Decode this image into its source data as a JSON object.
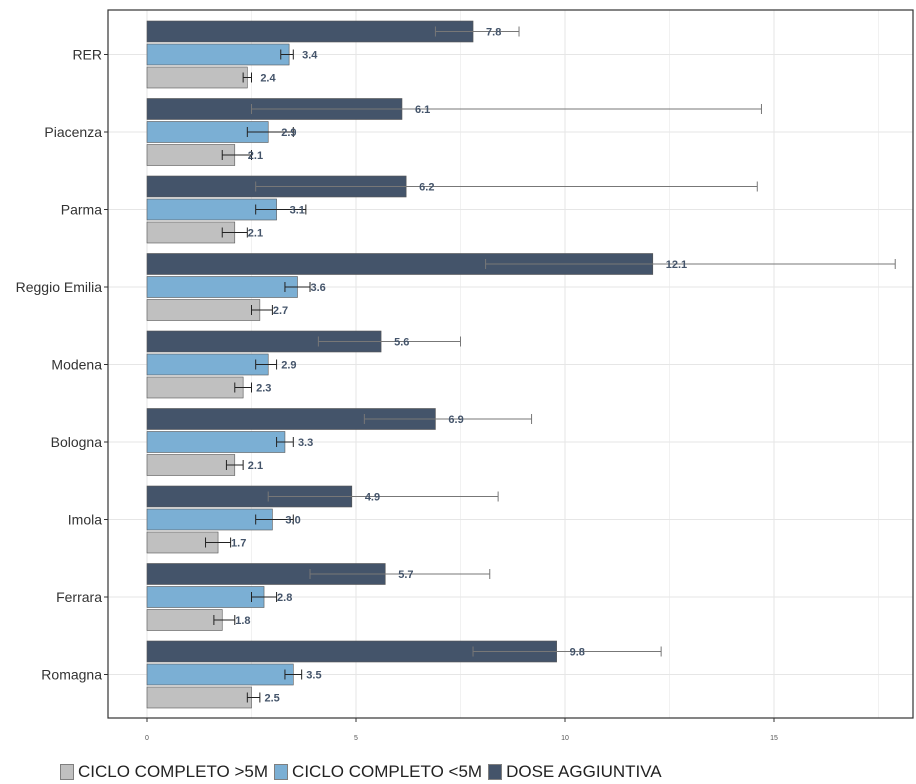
{
  "chart_data": {
    "type": "bar",
    "orientation": "horizontal",
    "categories": [
      "RER",
      "Piacenza",
      "Parma",
      "Reggio Emilia",
      "Modena",
      "Bologna",
      "Imola",
      "Ferrara",
      "Romagna"
    ],
    "series": [
      {
        "name": "DOSE AGGIUNTIVA",
        "color": "#44546a",
        "values": [
          7.8,
          6.1,
          6.2,
          12.1,
          5.6,
          6.9,
          4.9,
          5.7,
          9.8
        ],
        "ci_low": [
          6.9,
          2.5,
          2.6,
          8.1,
          4.1,
          5.2,
          2.9,
          3.9,
          7.8
        ],
        "ci_high": [
          8.9,
          14.7,
          14.6,
          17.9,
          7.5,
          9.2,
          8.4,
          8.2,
          12.3
        ]
      },
      {
        "name": "CICLO COMPLETO <5M",
        "color": "#7bafd4",
        "values": [
          3.4,
          2.9,
          3.1,
          3.6,
          2.9,
          3.3,
          3.0,
          2.8,
          3.5
        ],
        "ci_low": [
          3.2,
          2.4,
          2.6,
          3.3,
          2.6,
          3.1,
          2.6,
          2.5,
          3.3
        ],
        "ci_high": [
          3.5,
          3.5,
          3.8,
          3.9,
          3.1,
          3.5,
          3.5,
          3.1,
          3.7
        ]
      },
      {
        "name": "CICLO COMPLETO >5M",
        "color": "#c0c0c0",
        "values": [
          2.4,
          2.1,
          2.1,
          2.7,
          2.3,
          2.1,
          1.7,
          1.8,
          2.5
        ],
        "ci_low": [
          2.3,
          1.8,
          1.8,
          2.5,
          2.1,
          1.9,
          1.4,
          1.6,
          2.4
        ],
        "ci_high": [
          2.5,
          2.5,
          2.4,
          3.0,
          2.5,
          2.3,
          2.0,
          2.1,
          2.7
        ]
      }
    ],
    "x_ticks": [
      "0",
      "5",
      "10",
      "15"
    ],
    "xlim": [
      -0.9,
      18.5
    ],
    "grid": true,
    "legend_position": "bottom",
    "title": "",
    "xlabel": "",
    "ylabel": ""
  },
  "legend": [
    {
      "label": "CICLO COMPLETO >5M",
      "color": "#c0c0c0"
    },
    {
      "label": "CICLO COMPLETO <5M",
      "color": "#7bafd4"
    },
    {
      "label": "DOSE AGGIUNTIVA",
      "color": "#44546a"
    }
  ]
}
